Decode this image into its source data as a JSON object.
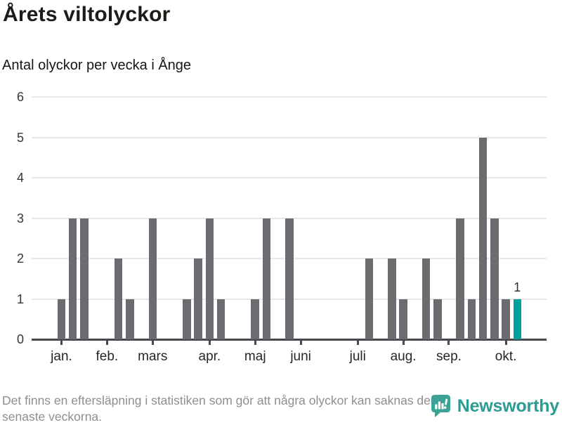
{
  "header": {
    "title": "Årets viltolyckor",
    "subtitle": "Antal olyckor per vecka i Ånge"
  },
  "chart_data": {
    "type": "bar",
    "title": "Årets viltolyckor",
    "subtitle": "Antal olyckor per vecka i Ånge",
    "x_unit": "vecka (week of year)",
    "ylim": [
      0,
      6
    ],
    "y_ticks": [
      0,
      1,
      2,
      3,
      4,
      5,
      6
    ],
    "grid": "horizontal",
    "values": [
      1,
      3,
      3,
      0,
      0,
      2,
      1,
      0,
      3,
      0,
      0,
      1,
      2,
      3,
      1,
      0,
      0,
      1,
      3,
      0,
      3,
      0,
      0,
      0,
      0,
      0,
      0,
      2,
      0,
      2,
      1,
      0,
      2,
      1,
      0,
      3,
      1,
      5,
      3,
      1,
      1
    ],
    "month_ticks": [
      {
        "label": "jan.",
        "week": 1
      },
      {
        "label": "feb.",
        "week": 5
      },
      {
        "label": "mars",
        "week": 9
      },
      {
        "label": "apr.",
        "week": 14
      },
      {
        "label": "maj",
        "week": 18
      },
      {
        "label": "juni",
        "week": 22
      },
      {
        "label": "juli",
        "week": 27
      },
      {
        "label": "aug.",
        "week": 31
      },
      {
        "label": "sep.",
        "week": 35
      },
      {
        "label": "okt.",
        "week": 40
      }
    ],
    "bar_color": "#6b6b70",
    "highlight": {
      "index": 40,
      "value": 1,
      "label": "1",
      "color": "#00a19a"
    },
    "gridline_color": "#e7e7e7",
    "axis_color": "#47474d"
  },
  "footer": {
    "lines": [
      "Det finns en eftersläpning i statistiken som gör att några olyckor kan saknas de",
      "senaste veckorna."
    ]
  },
  "branding": {
    "name": "Newsworthy",
    "wordmark_color": "#2c9c93",
    "logo_color": "#3ba295"
  }
}
